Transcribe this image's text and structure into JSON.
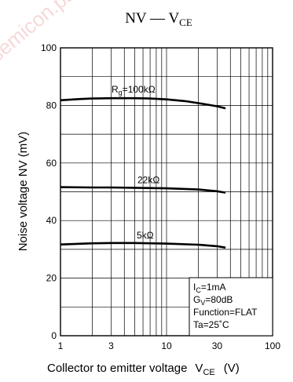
{
  "chart_data": {
    "type": "line",
    "title": "NV — V",
    "title_subscript": "CE",
    "xlabel": "Collector to emitter voltage",
    "xlabel_symbol": "V",
    "xlabel_subscript": "CE",
    "xlabel_unit": "(V)",
    "ylabel": "Noise voltage  NV   (mV)",
    "x_scale": "log",
    "xlim": [
      1,
      100
    ],
    "ylim": [
      0,
      100
    ],
    "x_ticks": [
      1,
      3,
      10,
      30,
      100
    ],
    "x_tick_labels": [
      "1",
      "3",
      "10",
      "30",
      "100"
    ],
    "y_ticks": [
      0,
      20,
      40,
      60,
      80,
      100
    ],
    "y_tick_labels": [
      "0",
      "20",
      "40",
      "60",
      "80",
      "100"
    ],
    "grid": true,
    "series": [
      {
        "name": "Rg=100kΩ",
        "x": [
          1,
          1.5,
          2,
          3,
          5,
          7,
          10,
          15,
          20,
          30,
          36
        ],
        "y": [
          81.8,
          82.2,
          82.4,
          82.5,
          82.5,
          82.4,
          82.1,
          81.5,
          80.8,
          79.7,
          79.0
        ]
      },
      {
        "name": "22kΩ",
        "x": [
          1,
          2,
          3,
          5,
          10,
          20,
          30,
          36
        ],
        "y": [
          51.6,
          51.5,
          51.5,
          51.4,
          51.2,
          50.8,
          50.2,
          49.7
        ]
      },
      {
        "name": "5kΩ",
        "x": [
          1,
          2,
          3,
          5,
          10,
          20,
          30,
          36
        ],
        "y": [
          31.7,
          32.1,
          32.2,
          32.2,
          32.0,
          31.6,
          31.1,
          30.6
        ]
      }
    ],
    "series_labels": [
      {
        "main": "R",
        "sub": "g",
        "rest": "=100kΩ"
      },
      {
        "main": "22kΩ",
        "sub": "",
        "rest": ""
      },
      {
        "main": "5kΩ",
        "sub": "",
        "rest": ""
      }
    ],
    "conditions": [
      {
        "main": "I",
        "sub": "C",
        "rest": "=1mA"
      },
      {
        "main": "G",
        "sub": "V",
        "rest": "=80dB"
      },
      {
        "main": "Function=FLAT",
        "sub": "",
        "rest": ""
      },
      {
        "main": "Ta=25˚C",
        "sub": "",
        "rest": ""
      }
    ],
    "watermark": "semicon.pa",
    "colors": {
      "line": "#000000",
      "grid": "#000000",
      "background": "#ffffff"
    }
  }
}
